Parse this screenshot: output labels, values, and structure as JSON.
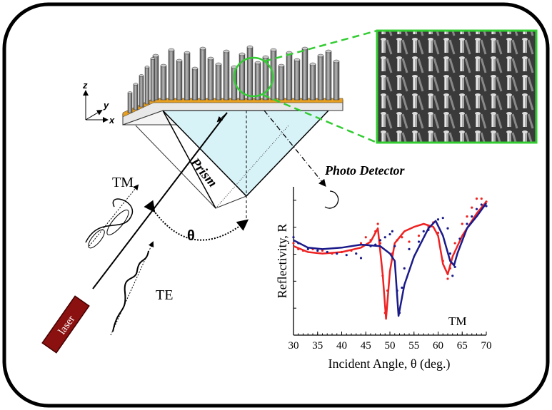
{
  "labels": {
    "prism": "Prism",
    "photo_detector": "Photo Detector",
    "tm_wave": "TM",
    "te_wave": "TE",
    "angle": "θ",
    "laser": "laser",
    "axis_z": "z",
    "axis_y": "y",
    "axis_x": "x"
  },
  "colors": {
    "prism_fill": "#d8f3f8",
    "gold_layer": "#e8a020",
    "highlight_green": "#33cc33",
    "laser_red": "#8b1010",
    "series_red": "#ee2222",
    "series_blue": "#1a1a8a"
  },
  "chart_data": {
    "type": "line",
    "xlabel": "Incident Angle, θ (deg.)",
    "ylabel": "Reflectivity, R",
    "annotation": "TM",
    "xlim": [
      30,
      70
    ],
    "ylim": [
      0,
      1
    ],
    "xticks": [
      "30",
      "35",
      "40",
      "45",
      "50",
      "55",
      "60",
      "65",
      "70"
    ],
    "grid": false,
    "series": [
      {
        "color": "#ee2222",
        "fit": [
          [
            30,
            0.6
          ],
          [
            33,
            0.56
          ],
          [
            36,
            0.55
          ],
          [
            40,
            0.56
          ],
          [
            44,
            0.59
          ],
          [
            46,
            0.63
          ],
          [
            47.5,
            0.72
          ],
          [
            48.5,
            0.41
          ],
          [
            49.2,
            0.11
          ],
          [
            50,
            0.43
          ],
          [
            51,
            0.62
          ],
          [
            53,
            0.7
          ],
          [
            55,
            0.73
          ],
          [
            57,
            0.75
          ],
          [
            59,
            0.73
          ],
          [
            60,
            0.67
          ],
          [
            61,
            0.48
          ],
          [
            62,
            0.41
          ],
          [
            63,
            0.53
          ],
          [
            65,
            0.67
          ],
          [
            68,
            0.82
          ],
          [
            70,
            0.9
          ]
        ],
        "measured": [
          [
            30,
            0.62
          ],
          [
            31,
            0.58
          ],
          [
            32,
            0.57
          ],
          [
            34,
            0.58
          ],
          [
            36,
            0.57
          ],
          [
            38,
            0.55
          ],
          [
            40,
            0.56
          ],
          [
            42,
            0.57
          ],
          [
            44,
            0.62
          ],
          [
            45,
            0.66
          ],
          [
            46,
            0.64
          ],
          [
            47,
            0.7
          ],
          [
            47.5,
            0.75
          ],
          [
            48,
            0.62
          ],
          [
            48.5,
            0.4
          ],
          [
            49,
            0.15
          ],
          [
            49.5,
            0.3
          ],
          [
            50.5,
            0.55
          ],
          [
            51.5,
            0.64
          ],
          [
            52.5,
            0.66
          ],
          [
            54,
            0.63
          ],
          [
            56,
            0.67
          ],
          [
            58,
            0.73
          ],
          [
            59,
            0.76
          ],
          [
            60,
            0.69
          ],
          [
            61,
            0.5
          ],
          [
            62,
            0.38
          ],
          [
            62.5,
            0.45
          ],
          [
            63.5,
            0.62
          ],
          [
            65,
            0.75
          ],
          [
            66,
            0.8
          ],
          [
            67,
            0.86
          ],
          [
            68,
            0.92
          ],
          [
            69,
            0.92
          ],
          [
            70,
            0.9
          ]
        ]
      },
      {
        "color": "#1a1a8a",
        "fit": [
          [
            30,
            0.64
          ],
          [
            33,
            0.59
          ],
          [
            36,
            0.58
          ],
          [
            40,
            0.59
          ],
          [
            44,
            0.61
          ],
          [
            48,
            0.6
          ],
          [
            50,
            0.55
          ],
          [
            51,
            0.5
          ],
          [
            51.8,
            0.13
          ],
          [
            53,
            0.34
          ],
          [
            55,
            0.53
          ],
          [
            58,
            0.72
          ],
          [
            59.5,
            0.77
          ],
          [
            61,
            0.67
          ],
          [
            62.5,
            0.5
          ],
          [
            63.3,
            0.47
          ],
          [
            64,
            0.55
          ],
          [
            66,
            0.72
          ],
          [
            68,
            0.8
          ],
          [
            70,
            0.89
          ]
        ],
        "measured": [
          [
            30,
            0.66
          ],
          [
            31,
            0.62
          ],
          [
            33,
            0.58
          ],
          [
            35,
            0.57
          ],
          [
            37,
            0.56
          ],
          [
            39,
            0.55
          ],
          [
            41,
            0.54
          ],
          [
            43,
            0.55
          ],
          [
            44,
            0.52
          ],
          [
            46,
            0.6
          ],
          [
            47,
            0.61
          ],
          [
            48,
            0.64
          ],
          [
            49,
            0.66
          ],
          [
            50,
            0.68
          ],
          [
            50.5,
            0.7
          ],
          [
            51,
            0.6
          ],
          [
            51.5,
            0.3
          ],
          [
            52,
            0.15
          ],
          [
            52.5,
            0.32
          ],
          [
            53,
            0.45
          ],
          [
            54,
            0.58
          ],
          [
            56,
            0.63
          ],
          [
            57,
            0.7
          ],
          [
            58,
            0.71
          ],
          [
            60,
            0.78
          ],
          [
            61,
            0.79
          ],
          [
            62,
            0.72
          ],
          [
            62.5,
            0.55
          ],
          [
            63,
            0.4
          ],
          [
            63.5,
            0.46
          ],
          [
            64.5,
            0.65
          ],
          [
            66,
            0.75
          ],
          [
            67,
            0.8
          ],
          [
            68,
            0.85
          ],
          [
            69,
            0.88
          ],
          [
            70,
            0.87
          ]
        ]
      }
    ]
  }
}
